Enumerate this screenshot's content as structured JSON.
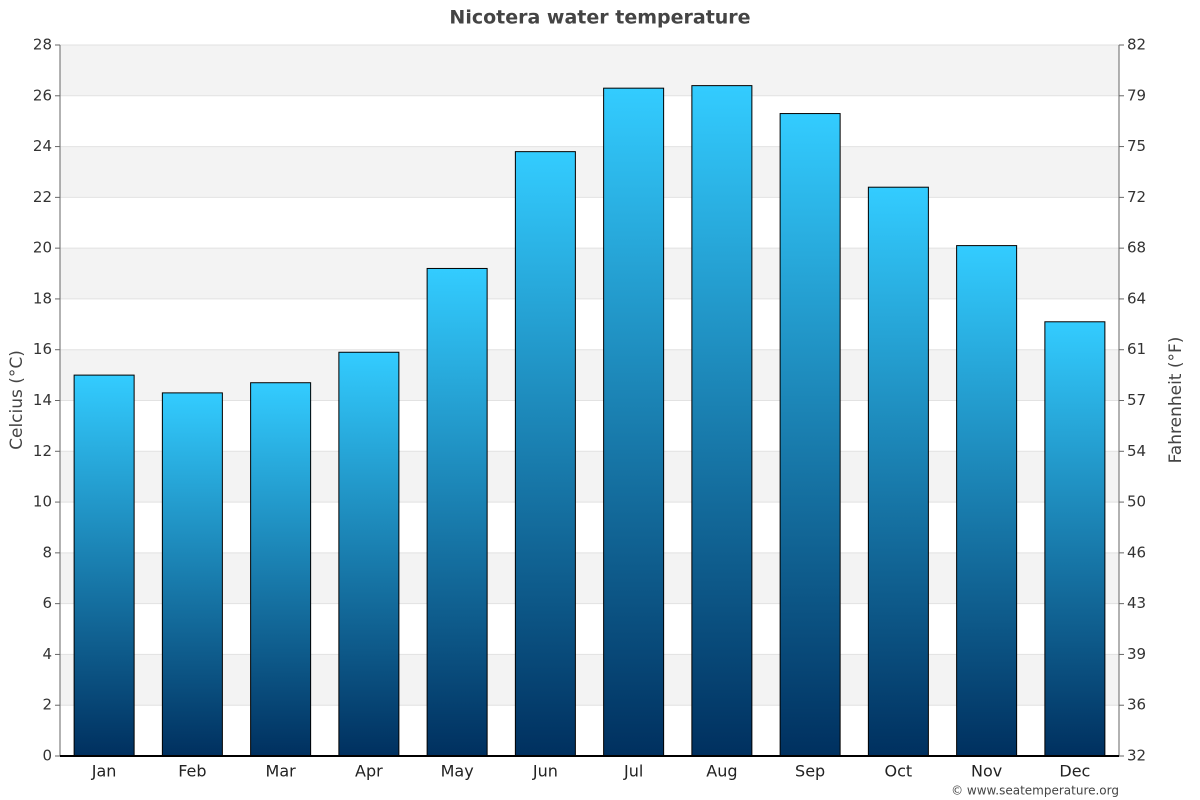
{
  "chart_data": {
    "type": "bar",
    "title": "Nicotera water temperature",
    "y_label": "Celcius (°C)",
    "y2_label": "Fahrenheit (°F)",
    "source": "© www.seatemperature.org",
    "categories": [
      "Jan",
      "Feb",
      "Mar",
      "Apr",
      "May",
      "Jun",
      "Jul",
      "Aug",
      "Sep",
      "Oct",
      "Nov",
      "Dec"
    ],
    "values": [
      15.0,
      14.3,
      14.7,
      15.9,
      19.2,
      23.8,
      26.3,
      26.4,
      25.3,
      22.4,
      20.1,
      17.1
    ],
    "gradient": [
      "#33ccff",
      "#00305f"
    ],
    "ylim": [
      0,
      28
    ],
    "yticks": [
      0,
      2,
      4,
      6,
      8,
      10,
      12,
      14,
      16,
      18,
      20,
      22,
      24,
      26,
      28
    ],
    "y2lim": [
      32,
      82.4
    ],
    "y2ticks": [
      32,
      {
        "value": 35.6,
        "label": "36"
      },
      {
        "value": 39.2,
        "label": "39"
      },
      {
        "value": 42.8,
        "label": "43"
      },
      {
        "value": 46.4,
        "label": "46"
      },
      50,
      {
        "value": 53.6,
        "label": "54"
      },
      {
        "value": 57.2,
        "label": "57"
      },
      {
        "value": 60.8,
        "label": "61"
      },
      {
        "value": 64.4,
        "label": "64"
      },
      68,
      {
        "value": 71.6,
        "label": "72"
      },
      {
        "value": 75.2,
        "label": "75"
      },
      {
        "value": 78.8,
        "label": "79"
      },
      {
        "value": 82.4,
        "label": "82"
      }
    ],
    "grid": true
  }
}
